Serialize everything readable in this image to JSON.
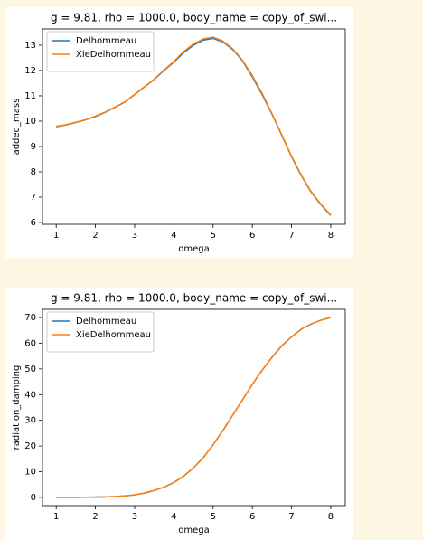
{
  "chart_data": [
    {
      "type": "line",
      "title": "g = 9.81, rho = 1000.0, body_name = copy_of_swi...",
      "x_label": "omega",
      "y_label": "added_mass",
      "x": [
        1,
        1.25,
        1.5,
        1.75,
        2,
        2.25,
        2.5,
        2.75,
        3,
        3.25,
        3.5,
        3.75,
        4,
        4.25,
        4.5,
        4.75,
        5,
        5.25,
        5.5,
        5.75,
        6,
        6.25,
        6.5,
        6.75,
        7,
        7.25,
        7.5,
        7.75,
        8
      ],
      "series": [
        {
          "name": "Delhommeau",
          "color": "#1f77b4",
          "values": [
            9.78,
            9.85,
            9.95,
            10.05,
            10.18,
            10.35,
            10.55,
            10.75,
            11.05,
            11.35,
            11.65,
            12.0,
            12.33,
            12.7,
            13.0,
            13.2,
            13.27,
            13.13,
            12.83,
            12.38,
            11.75,
            11.05,
            10.28,
            9.45,
            8.6,
            7.85,
            7.2,
            6.7,
            6.28
          ]
        },
        {
          "name": "XieDelhommeau",
          "color": "#ff7f0e",
          "values": [
            9.8,
            9.86,
            9.96,
            10.06,
            10.2,
            10.36,
            10.56,
            10.76,
            11.06,
            11.36,
            11.66,
            12.02,
            12.36,
            12.75,
            13.05,
            13.25,
            13.32,
            13.16,
            12.86,
            12.4,
            11.8,
            11.1,
            10.3,
            9.47,
            8.62,
            7.87,
            7.22,
            6.72,
            6.3
          ]
        }
      ],
      "xlim": [
        0.65,
        8.37
      ],
      "xticks": [
        1,
        2,
        3,
        4,
        5,
        6,
        7,
        8
      ],
      "ylim": [
        5.93,
        13.64
      ],
      "yticks": [
        6,
        7,
        8,
        9,
        10,
        11,
        12,
        13
      ],
      "legend": "upper left"
    },
    {
      "type": "line",
      "title": "g = 9.81, rho = 1000.0, body_name = copy_of_swi...",
      "x_label": "omega",
      "y_label": "radiation_damping",
      "x": [
        1,
        1.25,
        1.5,
        1.75,
        2,
        2.25,
        2.5,
        2.75,
        3,
        3.25,
        3.5,
        3.75,
        4,
        4.25,
        4.5,
        4.75,
        5,
        5.25,
        5.5,
        5.75,
        6,
        6.25,
        6.5,
        6.75,
        7,
        7.25,
        7.5,
        7.75,
        8
      ],
      "series": [
        {
          "name": "Delhommeau",
          "color": "#1f77b4",
          "values": [
            0,
            0,
            0,
            0.05,
            0.1,
            0.2,
            0.3,
            0.6,
            1,
            1.7,
            2.7,
            4,
            5.8,
            8.3,
            11.5,
            15.5,
            20.5,
            26,
            32,
            38,
            44,
            49.5,
            54.5,
            59,
            62.5,
            65.5,
            67.5,
            69,
            70
          ]
        },
        {
          "name": "XieDelhommeau",
          "color": "#ff7f0e",
          "values": [
            0,
            0,
            0,
            0.05,
            0.1,
            0.2,
            0.3,
            0.6,
            1,
            1.7,
            2.7,
            4,
            5.8,
            8.3,
            11.5,
            15.5,
            20.5,
            26,
            32,
            38,
            44,
            49.5,
            54.5,
            59,
            62.5,
            65.5,
            67.5,
            69,
            70
          ]
        }
      ],
      "xlim": [
        0.65,
        8.37
      ],
      "xticks": [
        1,
        2,
        3,
        4,
        5,
        6,
        7,
        8
      ],
      "ylim": [
        -3.2,
        73.2
      ],
      "yticks": [
        0,
        10,
        20,
        30,
        40,
        50,
        60,
        70
      ],
      "legend": "upper left"
    }
  ]
}
